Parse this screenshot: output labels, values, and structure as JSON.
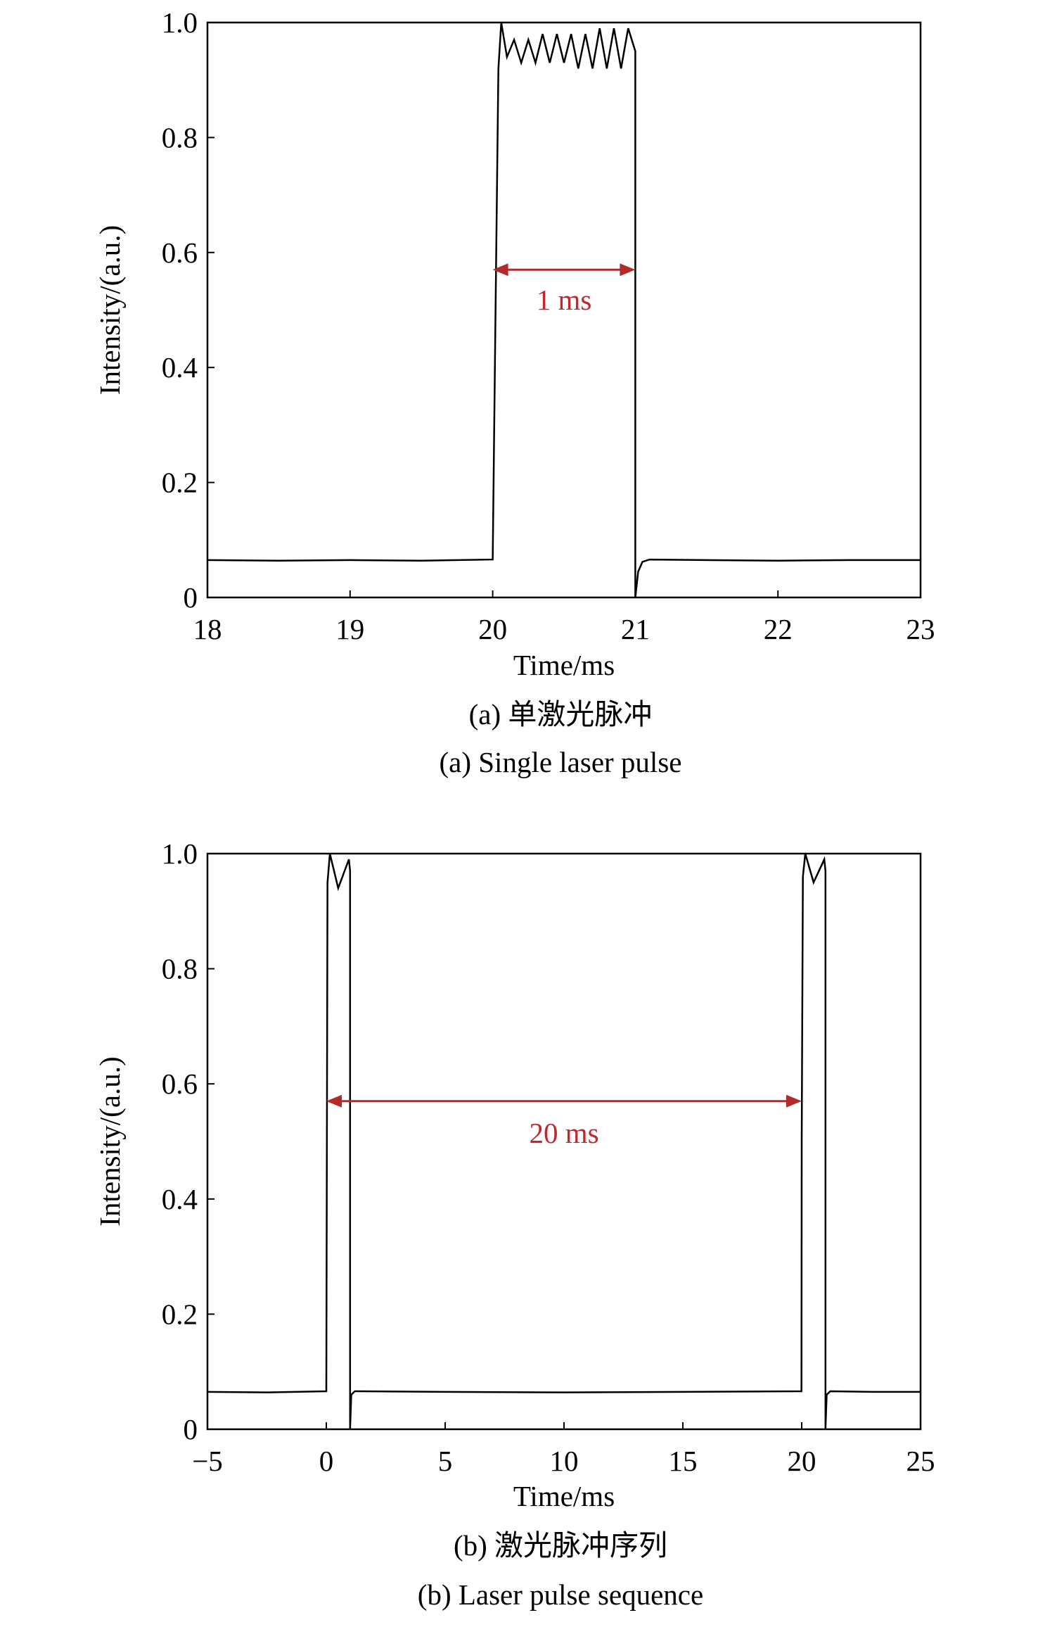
{
  "chart_data": [
    {
      "type": "line",
      "x_label": "Time/ms",
      "y_label": "Intensity/(a.u.)",
      "caption": "(a) 单激光脉冲",
      "caption_en": "(a) Single laser pulse",
      "annotation": "1 ms",
      "xlim": [
        18,
        23
      ],
      "xticks": [
        18,
        19,
        20,
        21,
        22,
        23
      ],
      "ylim": [
        0,
        1
      ],
      "yticks": [
        0,
        0.2,
        0.4,
        0.6,
        0.8,
        {
          "value": 1,
          "label": "1.0"
        }
      ],
      "series": [
        {
          "color": "#000000",
          "x": [
            18,
            18.5,
            19,
            19.5,
            20,
            20.02,
            20.04,
            20.06,
            20.08,
            20.1,
            20.15,
            20.2,
            20.25,
            20.3,
            20.35,
            20.4,
            20.45,
            20.5,
            20.55,
            20.6,
            20.65,
            20.7,
            20.75,
            20.8,
            20.85,
            20.9,
            20.95,
            21,
            21,
            21.02,
            21.05,
            21.1,
            21.5,
            22,
            22.5,
            23
          ],
          "values": [
            0.065,
            0.064,
            0.065,
            0.064,
            0.066,
            0.5,
            0.92,
            1.0,
            0.97,
            0.94,
            0.97,
            0.93,
            0.97,
            0.93,
            0.98,
            0.93,
            0.98,
            0.93,
            0.98,
            0.92,
            0.98,
            0.92,
            0.99,
            0.92,
            0.99,
            0.92,
            0.99,
            0.95,
            0,
            0.045,
            0.062,
            0.066,
            0.065,
            0.064,
            0.065,
            0.065
          ]
        }
      ]
    },
    {
      "type": "line",
      "x_label": "Time/ms",
      "y_label": "Intensity/(a.u.)",
      "caption": "(b) 激光脉冲序列",
      "caption_en": "(b) Laser pulse sequence",
      "annotation": "20 ms",
      "xlim": [
        -5,
        25
      ],
      "xticks": [
        {
          "value": -5,
          "label": "−5"
        },
        0,
        5,
        10,
        15,
        20,
        25
      ],
      "ylim": [
        0,
        1
      ],
      "yticks": [
        0,
        0.2,
        0.4,
        0.6,
        0.8,
        {
          "value": 1,
          "label": "1.0"
        }
      ],
      "series": [
        {
          "color": "#000000",
          "x": [
            -5,
            -2.5,
            0,
            0.05,
            0.15,
            0.5,
            0.95,
            1,
            1,
            1.05,
            1.2,
            5,
            10,
            15,
            19.99,
            20,
            20.05,
            20.15,
            20.5,
            20.95,
            21,
            21,
            21.05,
            21.2,
            23,
            25
          ],
          "values": [
            0.065,
            0.064,
            0.066,
            0.95,
            1.0,
            0.94,
            0.99,
            0.97,
            0,
            0.06,
            0.066,
            0.065,
            0.064,
            0.065,
            0.066,
            0.5,
            0.96,
            1.0,
            0.95,
            0.99,
            0.97,
            0,
            0.06,
            0.066,
            0.065,
            0.065
          ]
        }
      ]
    }
  ]
}
